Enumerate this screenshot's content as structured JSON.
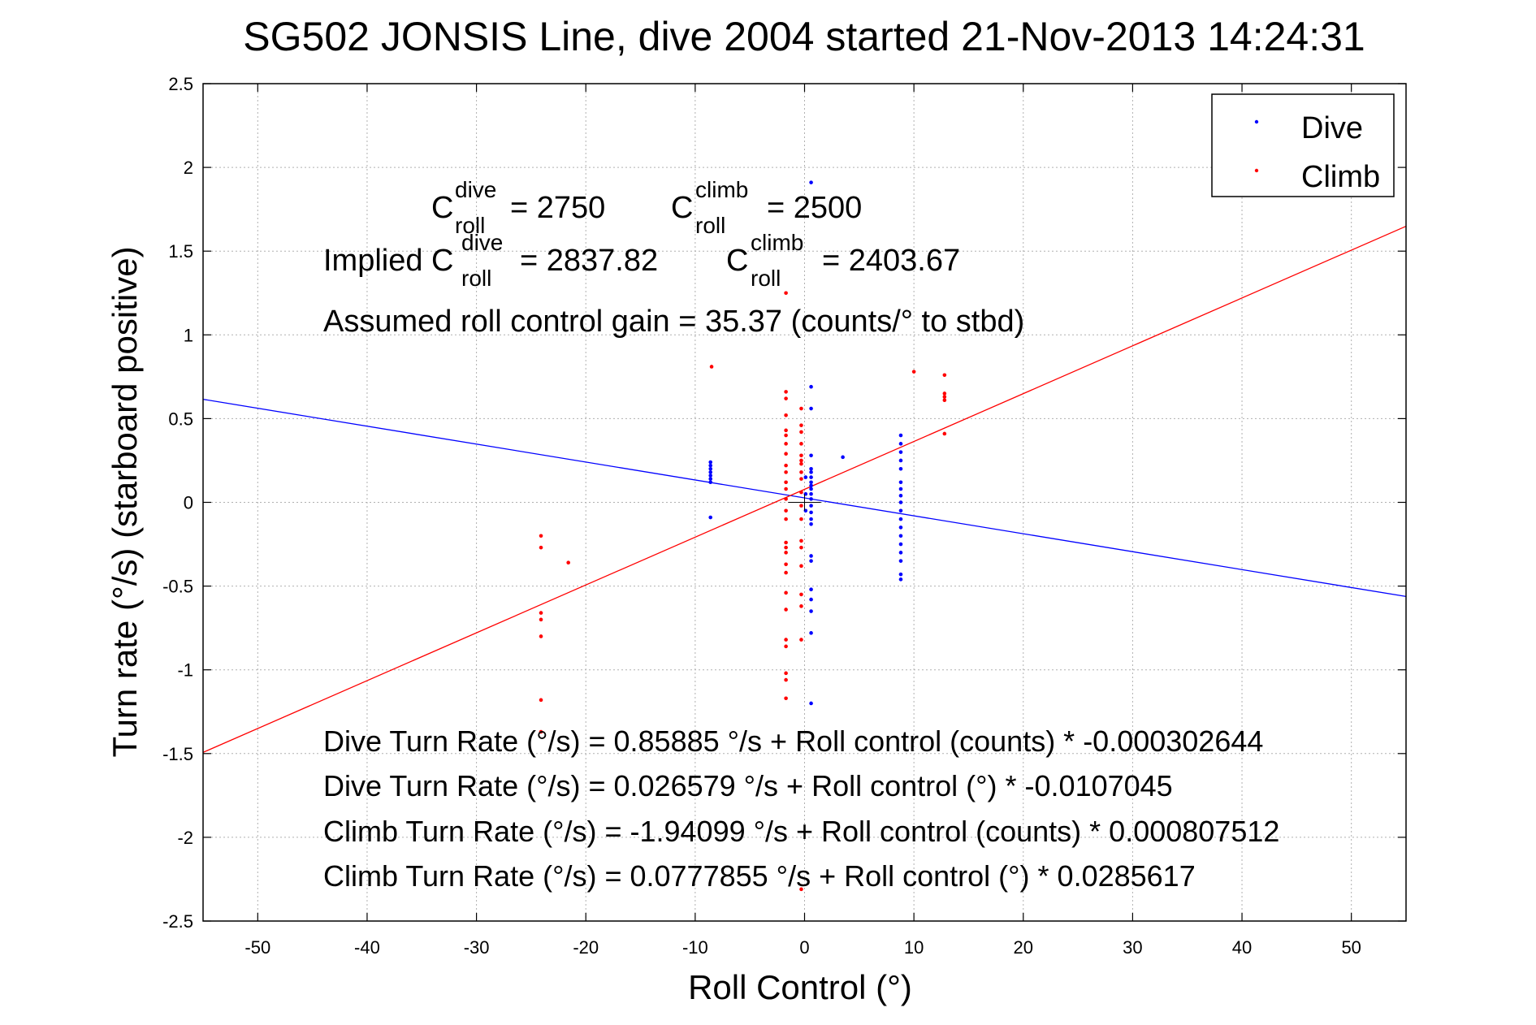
{
  "chart_data": {
    "type": "scatter",
    "title": "SG502 JONSIS Line, dive 2004 started 21-Nov-2013 14:24:31",
    "xlabel": "Roll Control (°)",
    "ylabel": "Turn rate (°/s)  (starboard positive)",
    "xlim": [
      -55,
      55
    ],
    "ylim": [
      -2.5,
      2.5
    ],
    "xticks": [
      -50,
      -40,
      -30,
      -20,
      -10,
      0,
      10,
      20,
      30,
      40,
      50
    ],
    "yticks": [
      -2.5,
      -2,
      -1.5,
      -1,
      -0.5,
      0,
      0.5,
      1,
      1.5,
      2,
      2.5
    ],
    "grid": true,
    "legend": {
      "position": "top-right",
      "entries": [
        "Dive",
        "Climb"
      ]
    },
    "series": [
      {
        "name": "Dive",
        "color": "#0000ff",
        "points": [
          [
            -8.6,
            0.24
          ],
          [
            -8.6,
            0.22
          ],
          [
            -8.6,
            0.2
          ],
          [
            -8.6,
            0.18
          ],
          [
            -8.6,
            0.16
          ],
          [
            -8.6,
            0.14
          ],
          [
            -8.6,
            0.12
          ],
          [
            -8.6,
            -0.09
          ],
          [
            0.6,
            1.91
          ],
          [
            0.6,
            0.69
          ],
          [
            0.6,
            0.56
          ],
          [
            0.6,
            0.28
          ],
          [
            0.6,
            0.2
          ],
          [
            0.6,
            0.18
          ],
          [
            0.6,
            0.15
          ],
          [
            0.6,
            0.12
          ],
          [
            0.6,
            0.1
          ],
          [
            0.6,
            0.08
          ],
          [
            0.6,
            0.05
          ],
          [
            0.6,
            0.02
          ],
          [
            0.6,
            -0.02
          ],
          [
            0.6,
            -0.06
          ],
          [
            0.6,
            -0.1
          ],
          [
            0.6,
            -0.13
          ],
          [
            0.6,
            -0.32
          ],
          [
            0.6,
            -0.35
          ],
          [
            0.6,
            -0.52
          ],
          [
            0.6,
            -0.58
          ],
          [
            0.6,
            -0.65
          ],
          [
            0.6,
            -0.78
          ],
          [
            0.6,
            -1.2
          ],
          [
            0.1,
            0.15
          ],
          [
            0.1,
            0.05
          ],
          [
            0.1,
            -0.05
          ],
          [
            3.5,
            0.27
          ],
          [
            8.8,
            0.4
          ],
          [
            8.8,
            0.35
          ],
          [
            8.8,
            0.3
          ],
          [
            8.8,
            0.25
          ],
          [
            8.8,
            0.2
          ],
          [
            8.8,
            0.12
          ],
          [
            8.8,
            0.08
          ],
          [
            8.8,
            0.04
          ],
          [
            8.8,
            0.0
          ],
          [
            8.8,
            -0.05
          ],
          [
            8.8,
            -0.1
          ],
          [
            8.8,
            -0.15
          ],
          [
            8.8,
            -0.2
          ],
          [
            8.8,
            -0.25
          ],
          [
            8.8,
            -0.3
          ],
          [
            8.8,
            -0.35
          ],
          [
            8.8,
            -0.43
          ],
          [
            8.8,
            -0.46
          ]
        ],
        "fit": {
          "intercept": 0.026579,
          "slope": -0.0107045
        }
      },
      {
        "name": "Climb",
        "color": "#ff0000",
        "points": [
          [
            -24.1,
            -0.2
          ],
          [
            -24.1,
            -0.27
          ],
          [
            -24.1,
            -0.66
          ],
          [
            -24.1,
            -0.7
          ],
          [
            -24.1,
            -0.8
          ],
          [
            -24.1,
            -1.18
          ],
          [
            -24.1,
            -1.37
          ],
          [
            -21.6,
            -0.36
          ],
          [
            -8.5,
            0.81
          ],
          [
            -1.7,
            0.66
          ],
          [
            -1.7,
            0.62
          ],
          [
            -1.7,
            0.52
          ],
          [
            -1.7,
            0.43
          ],
          [
            -1.7,
            0.4
          ],
          [
            -1.7,
            0.35
          ],
          [
            -1.7,
            0.29
          ],
          [
            -1.7,
            0.22
          ],
          [
            -1.7,
            0.18
          ],
          [
            -1.7,
            0.12
          ],
          [
            -1.7,
            0.08
          ],
          [
            -1.7,
            0.02
          ],
          [
            -1.7,
            -0.05
          ],
          [
            -1.7,
            -0.1
          ],
          [
            -1.7,
            -0.24
          ],
          [
            -1.7,
            -0.27
          ],
          [
            -1.7,
            -0.3
          ],
          [
            -1.7,
            -0.37
          ],
          [
            -1.7,
            -0.42
          ],
          [
            -1.7,
            -0.54
          ],
          [
            -1.7,
            -0.64
          ],
          [
            -1.7,
            -0.82
          ],
          [
            -1.7,
            -0.86
          ],
          [
            -1.7,
            -1.02
          ],
          [
            -1.7,
            -1.06
          ],
          [
            -1.7,
            -1.17
          ],
          [
            -1.7,
            1.25
          ],
          [
            -0.3,
            0.56
          ],
          [
            -0.3,
            0.46
          ],
          [
            -0.3,
            0.42
          ],
          [
            -0.3,
            0.35
          ],
          [
            -0.3,
            0.28
          ],
          [
            -0.3,
            0.25
          ],
          [
            -0.3,
            0.23
          ],
          [
            -0.3,
            0.18
          ],
          [
            -0.3,
            0.14
          ],
          [
            -0.3,
            0.06
          ],
          [
            -0.3,
            -0.02
          ],
          [
            -0.3,
            -0.1
          ],
          [
            -0.3,
            -0.23
          ],
          [
            -0.3,
            -0.27
          ],
          [
            -0.3,
            -0.38
          ],
          [
            -0.3,
            -0.55
          ],
          [
            -0.3,
            -0.62
          ],
          [
            -0.3,
            -0.82
          ],
          [
            -0.3,
            -2.31
          ],
          [
            10.0,
            0.78
          ],
          [
            12.8,
            0.76
          ],
          [
            12.8,
            0.65
          ],
          [
            12.8,
            0.63
          ],
          [
            12.8,
            0.61
          ],
          [
            12.8,
            0.41
          ]
        ],
        "fit": {
          "intercept": 0.0777855,
          "slope": 0.0285617
        }
      }
    ],
    "annotations": {
      "c_roll_base": "C",
      "c_roll_sub": "roll",
      "dive_sup": "dive",
      "climb_sup": "climb",
      "c_dive_value": "= 2750",
      "c_climb_value": "= 2500",
      "implied_prefix": "Implied C",
      "implied_dive_value": "= 2837.82",
      "implied_climb_value": "= 2403.67",
      "gain_text": "Assumed roll control gain = 35.37 (counts/° to stbd)",
      "fit_lines": [
        "Dive Turn Rate (°/s) = 0.85885 °/s + Roll control (counts) * -0.000302644",
        "Dive Turn Rate (°/s) = 0.026579 °/s + Roll control (°) * -0.0107045",
        "Climb Turn Rate (°/s) = -1.94099 °/s + Roll control (counts) * 0.000807512",
        "Climb Turn Rate (°/s) = 0.0777855 °/s + Roll control (°) * 0.0285617"
      ]
    }
  }
}
